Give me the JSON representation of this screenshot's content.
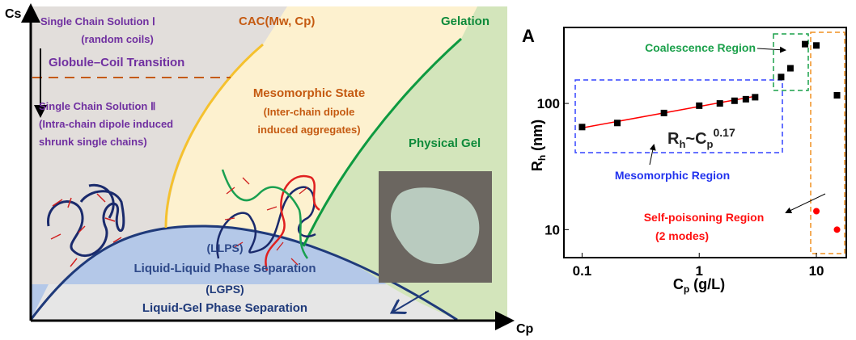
{
  "diagram": {
    "y_axis_label": "Cs",
    "x_axis_label": "Cp",
    "single_chain_1": "Single Chain Solution Ⅰ",
    "single_chain_1_sub": "(random coils)",
    "transition": "Globule–Coil Transition",
    "single_chain_2": "Single Chain Solution Ⅱ",
    "single_chain_2_sub1": "(Intra-chain dipole induced",
    "single_chain_2_sub2": "shrunk single chains)",
    "cac": "CAC(Mw, Cp)",
    "gelation": "Gelation",
    "meso": "Mesomorphic State",
    "meso_sub1": "(Inter-chain dipole",
    "meso_sub2": "induced aggregates)",
    "physical_gel": "Physical Gel",
    "llps_abbr": "(LLPS)",
    "llps": "Liquid-Liquid Phase Separation",
    "lgps_abbr": "(LGPS)",
    "lgps": "Liquid-Gel Phase Separation",
    "colors": {
      "grey_region": "#e2dedb",
      "meso_region": "#fdf1cf",
      "gel_region": "#d3e5bb",
      "llps_region": "#b4c8e8",
      "lgps_region": "#e6e6e6",
      "purple_text": "#7030a0",
      "orange_text": "#c55a11",
      "green_text": "#0e8a3a",
      "navy": "#1f3a7a"
    }
  },
  "chart_data": {
    "type": "scatter",
    "panel_label": "A",
    "xlabel": "C_p (g/L)",
    "ylabel": "R_h (nm)",
    "xscale": "log",
    "yscale": "log",
    "xlim": [
      0.07,
      18
    ],
    "ylim": [
      6,
      400
    ],
    "xticks": [
      "0.1",
      "1",
      "10"
    ],
    "yticks": [
      "10",
      "100"
    ],
    "series": [
      {
        "color": "#000000",
        "marker": "square",
        "x": [
          0.1,
          0.2,
          0.5,
          1,
          1.5,
          2,
          2.5,
          3
        ],
        "y": [
          65,
          70,
          84,
          96,
          100,
          105,
          108,
          112
        ]
      },
      {
        "color": "#000000",
        "marker": "square",
        "x": [
          5,
          6,
          8,
          10,
          15
        ],
        "y": [
          162,
          190,
          295,
          288,
          116
        ]
      },
      {
        "color": "#ff0000",
        "marker": "circle",
        "x": [
          10,
          15
        ],
        "y": [
          14,
          10
        ]
      }
    ],
    "fit": {
      "color": "#ff0000",
      "x": [
        0.1,
        3
      ],
      "y": [
        64,
        114
      ],
      "label": "R_h~C_p^0.17"
    },
    "annotations": {
      "coalescence": "Coalescence Region",
      "mesomorphic": "Mesomorphic Region",
      "self_poisoning": "Self-poisoning Region",
      "self_poisoning_sub": "(2 modes)"
    },
    "fit_label": {
      "base": "R",
      "sub1": "h",
      "mid": "~C",
      "sub2": "p",
      "sup": "0.17"
    }
  }
}
